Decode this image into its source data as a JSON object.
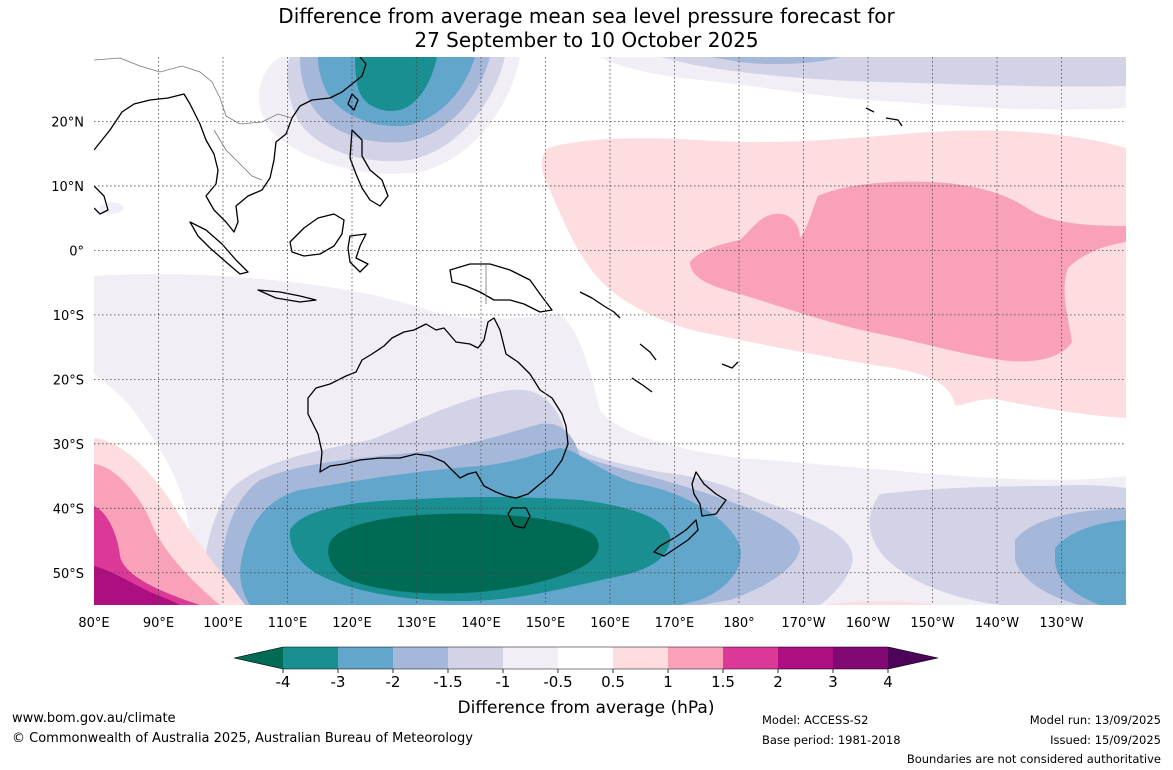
{
  "title": {
    "line1": "Difference from average mean sea level pressure forecast for",
    "line2": "27 September to 10 October 2025"
  },
  "axes": {
    "lon_labels": [
      "80°E",
      "90°E",
      "100°E",
      "110°E",
      "120°E",
      "130°E",
      "140°E",
      "150°E",
      "160°E",
      "170°E",
      "180°",
      "170°W",
      "160°W",
      "150°W",
      "140°W",
      "130°W"
    ],
    "lat_labels": [
      "20°N",
      "10°N",
      "0°",
      "10°S",
      "20°S",
      "30°S",
      "40°S",
      "50°S"
    ],
    "lon_range": [
      80,
      240
    ],
    "lat_range": [
      -55,
      30
    ],
    "grid": "dotted"
  },
  "colorbar": {
    "title": "Difference from average (hPa)",
    "tick_labels": [
      "-4",
      "-3",
      "-2",
      "-1.5",
      "-1",
      "-0.5",
      "0.5",
      "1",
      "1.5",
      "2",
      "3",
      "4"
    ],
    "colors": [
      "#006b54",
      "#1a8f91",
      "#63a6cc",
      "#a6b8d9",
      "#d3d3e8",
      "#f2eef6",
      "#ffffff",
      "#fddde0",
      "#f9a1b8",
      "#dc3898",
      "#ad0f80",
      "#820974",
      "#4d035a"
    ],
    "extend": "both"
  },
  "footer": {
    "website": "www.bom.gov.au/climate",
    "copyright": "© Commonwealth of Australia 2025, Australian Bureau of Meteorology",
    "model": "Model: ACCESS-S2",
    "base_period": "Base period: 1981-2018",
    "model_run": "Model run: 13/09/2025",
    "issued": "Issued: 15/09/2025",
    "disclaimer": "Boundaries are not considered authoritative"
  }
}
